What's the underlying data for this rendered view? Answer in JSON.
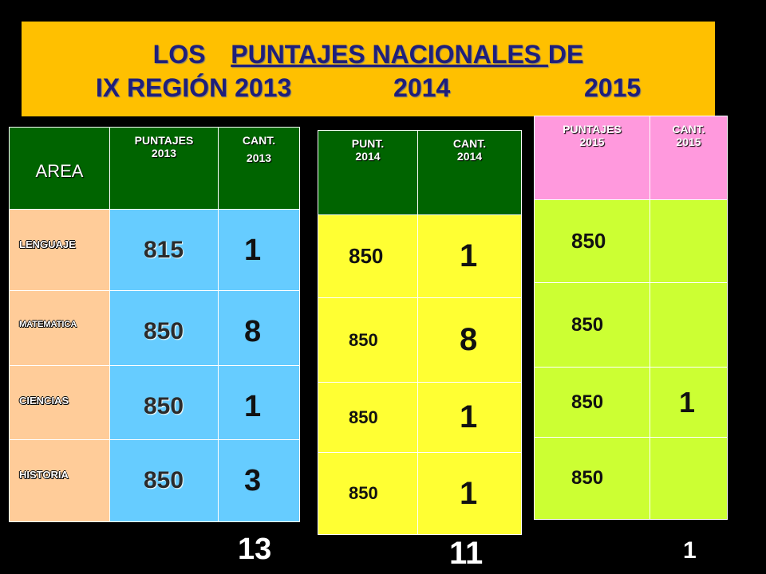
{
  "title": {
    "line1_a": "LOS",
    "line1_b": "PUNTAJES   NACIONALES ",
    "line1_c": "DE",
    "line2_a": "IX REGIÓN  2013",
    "line2_b": "2014",
    "line2_c": "2015"
  },
  "table2013": {
    "area_header": "AREA",
    "score_header_1": "PUNTAJES",
    "score_header_2": "2013",
    "count_header_1": "CANT.",
    "count_header_2": "2013",
    "rows": [
      {
        "area": "LENGUAJE",
        "score": "815",
        "count": "1"
      },
      {
        "area": "MATEMATICA",
        "score": "850",
        "count": "8"
      },
      {
        "area": "CIENCIAS",
        "score": "850",
        "count": "1"
      },
      {
        "area": "HISTORIA",
        "score": "850",
        "count": "3"
      }
    ],
    "total": "13"
  },
  "table2014": {
    "score_header_1": "PUNT.",
    "score_header_2": "2014",
    "count_header_1": "CANT.",
    "count_header_2": "2014",
    "rows": [
      {
        "score": "850",
        "count": "1"
      },
      {
        "score": "850",
        "count": "8"
      },
      {
        "score": "850",
        "count": "1"
      },
      {
        "score": "850",
        "count": "1"
      }
    ],
    "total": "11"
  },
  "table2015": {
    "score_header_1": "PUNTAJES",
    "score_header_2": "2015",
    "count_header_1": "CANT.",
    "count_header_2": "2015",
    "rows": [
      {
        "score": "850",
        "count": ""
      },
      {
        "score": "850",
        "count": ""
      },
      {
        "score": "850",
        "count": "1"
      },
      {
        "score": "850",
        "count": ""
      }
    ],
    "total": "1"
  },
  "colors": {
    "banner": "#FFC000",
    "header_green": "#006400",
    "area_peach": "#FFCC99",
    "score_blue": "#66CCFF",
    "yellow_2014": "#FFFF33",
    "pink_2015": "#FF99DD",
    "lime_2015": "#CCFF33"
  }
}
